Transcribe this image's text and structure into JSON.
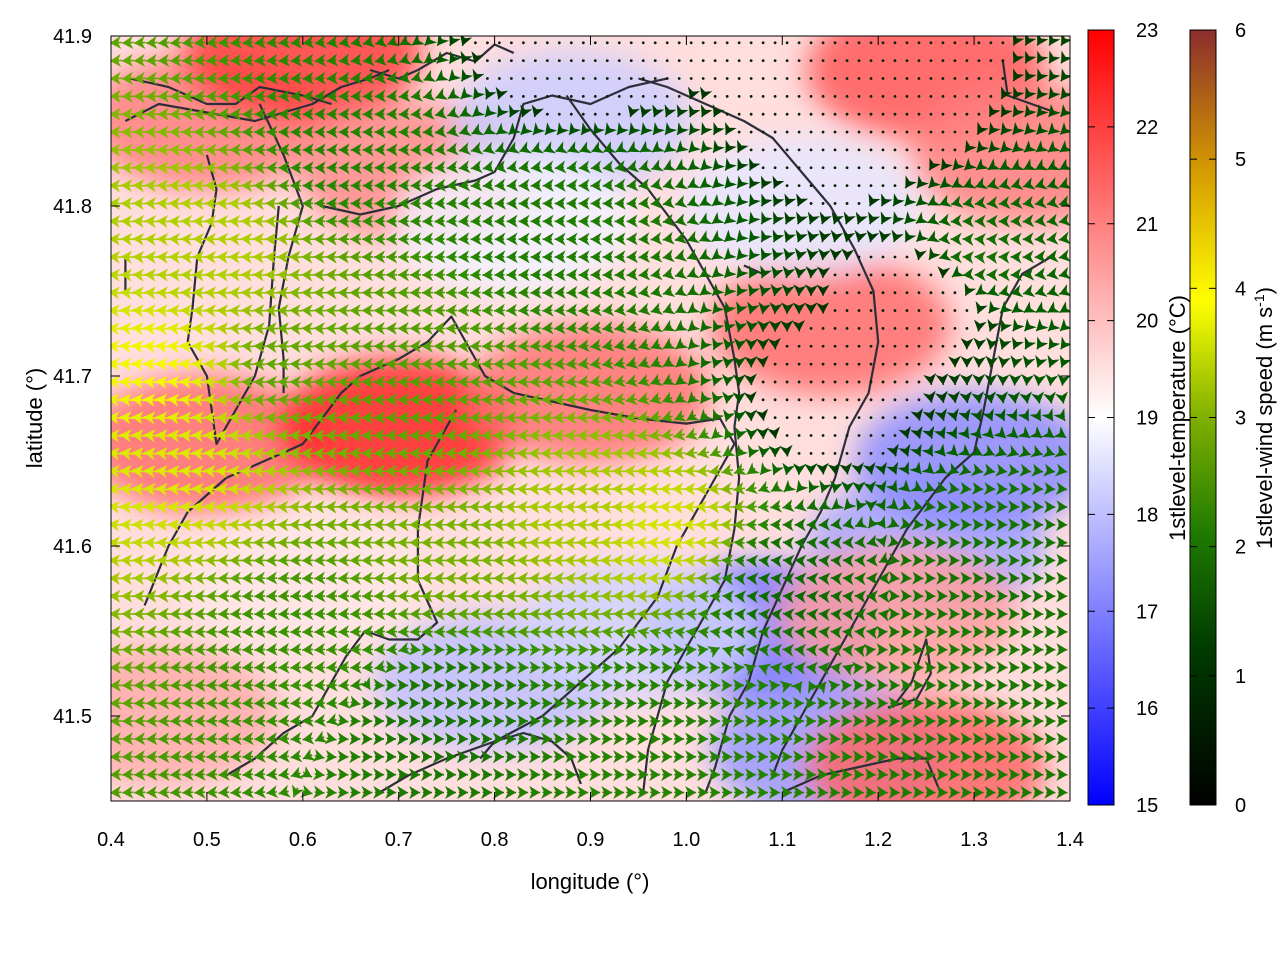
{
  "chart_data": {
    "type": "heatmap",
    "title": "",
    "xlabel": "longitude (°)",
    "ylabel": "latitude (°)",
    "xlim": [
      0.4,
      1.4
    ],
    "ylim": [
      41.45,
      41.9
    ],
    "x_ticks": [
      "0.4",
      "0.5",
      "0.6",
      "0.7",
      "0.8",
      "0.9",
      "1.0",
      "1.1",
      "1.2",
      "1.3",
      "1.4"
    ],
    "y_ticks": [
      "41.5",
      "41.6",
      "41.7",
      "41.8",
      "41.9"
    ],
    "x_tick_values": [
      0.4,
      0.5,
      0.6,
      0.7,
      0.8,
      0.9,
      1.0,
      1.1,
      1.2,
      1.3,
      1.4
    ],
    "y_tick_values": [
      41.5,
      41.6,
      41.7,
      41.8,
      41.9
    ],
    "temperature_colorbar": {
      "label": "1stlevel-temperature (°C)",
      "range": [
        15,
        23
      ],
      "ticks": [
        "15",
        "16",
        "17",
        "18",
        "19",
        "20",
        "21",
        "22",
        "23"
      ],
      "tick_values": [
        15,
        16,
        17,
        18,
        19,
        20,
        21,
        22,
        23
      ],
      "colors": [
        "#0000ff",
        "#ffffff",
        "#ff0000"
      ]
    },
    "wind_colorbar": {
      "label_main": "1stlevel-wind speed (m s",
      "label_sup": "-1",
      "label_end": ")",
      "range": [
        0,
        6
      ],
      "ticks": [
        "0",
        "1",
        "2",
        "3",
        "4",
        "5",
        "6"
      ],
      "tick_values": [
        0,
        1,
        2,
        3,
        4,
        5,
        6
      ],
      "colors": [
        "#000000",
        "#005a00",
        "#2d8c00",
        "#aacc00",
        "#ffff00",
        "#e0a000",
        "#8b2d2d"
      ]
    },
    "temperature_regions": [
      {
        "lon": 0.5,
        "lat": 41.85,
        "temp": 21.0
      },
      {
        "lon": 0.6,
        "lat": 41.89,
        "temp": 22.0
      },
      {
        "lon": 0.72,
        "lat": 41.82,
        "temp": 20.8
      },
      {
        "lon": 0.5,
        "lat": 41.66,
        "temp": 21.3
      },
      {
        "lon": 0.7,
        "lat": 41.67,
        "temp": 22.4
      },
      {
        "lon": 0.9,
        "lat": 41.69,
        "temp": 21.2
      },
      {
        "lon": 1.15,
        "lat": 41.73,
        "temp": 21.3
      },
      {
        "lon": 1.25,
        "lat": 41.88,
        "temp": 21.6
      },
      {
        "lon": 1.36,
        "lat": 41.83,
        "temp": 21.0
      },
      {
        "lon": 0.88,
        "lat": 41.85,
        "temp": 18.2
      },
      {
        "lon": 0.82,
        "lat": 41.79,
        "temp": 18.8
      },
      {
        "lon": 1.12,
        "lat": 41.8,
        "temp": 18.6
      },
      {
        "lon": 1.25,
        "lat": 41.6,
        "temp": 17.6
      },
      {
        "lon": 1.3,
        "lat": 41.65,
        "temp": 17.2
      },
      {
        "lon": 1.08,
        "lat": 41.55,
        "temp": 16.8
      },
      {
        "lon": 1.15,
        "lat": 41.48,
        "temp": 17.4
      },
      {
        "lon": 0.8,
        "lat": 41.52,
        "temp": 18.0
      },
      {
        "lon": 0.95,
        "lat": 41.55,
        "temp": 18.3
      },
      {
        "lon": 1.22,
        "lat": 41.56,
        "temp": 20.5
      },
      {
        "lon": 1.25,
        "lat": 41.47,
        "temp": 21.4
      },
      {
        "lon": 0.45,
        "lat": 41.5,
        "temp": 20.3
      },
      {
        "lon": 0.6,
        "lat": 41.58,
        "temp": 19.4
      }
    ],
    "wind_regions": [
      {
        "lon": 0.45,
        "lat": 41.7,
        "speed": 3.9,
        "u": -1,
        "v": 0.1
      },
      {
        "lon": 0.47,
        "lat": 41.65,
        "speed": 3.6,
        "u": -1,
        "v": 0.1
      },
      {
        "lon": 0.5,
        "lat": 41.78,
        "speed": 3.1,
        "u": -1,
        "v": 0.05
      },
      {
        "lon": 0.58,
        "lat": 41.7,
        "speed": 2.4,
        "u": -1,
        "v": 0.05
      },
      {
        "lon": 0.65,
        "lat": 41.83,
        "speed": 1.8,
        "u": -1,
        "v": 0.0
      },
      {
        "lon": 0.7,
        "lat": 41.7,
        "speed": 2.3,
        "u": -1,
        "v": 0.0
      },
      {
        "lon": 0.98,
        "lat": 41.61,
        "speed": 3.5,
        "u": -1,
        "v": 0.05
      },
      {
        "lon": 0.88,
        "lat": 41.62,
        "speed": 3.0,
        "u": -1,
        "v": 0.05
      },
      {
        "lon": 0.75,
        "lat": 41.6,
        "speed": 2.6,
        "u": -1,
        "v": 0.0
      },
      {
        "lon": 0.88,
        "lat": 41.79,
        "speed": 1.7,
        "u": -1,
        "v": 0.0
      },
      {
        "lon": 0.6,
        "lat": 41.55,
        "speed": 2.1,
        "u": -1,
        "v": -0.05
      },
      {
        "lon": 0.75,
        "lat": 41.5,
        "speed": 1.5,
        "u": 1,
        "v": 0.0
      },
      {
        "lon": 0.98,
        "lat": 41.5,
        "speed": 1.8,
        "u": 1,
        "v": 0.0
      },
      {
        "lon": 1.15,
        "lat": 41.68,
        "speed": 0.3,
        "u": 0.3,
        "v": -1
      },
      {
        "lon": 1.25,
        "lat": 41.75,
        "speed": 0.25,
        "u": 0.3,
        "v": -1
      },
      {
        "lon": 1.18,
        "lat": 41.85,
        "speed": 0.2,
        "u": -0.3,
        "v": -1
      },
      {
        "lon": 1.32,
        "lat": 41.6,
        "speed": 1.5,
        "u": 1,
        "v": 0.0
      },
      {
        "lon": 1.32,
        "lat": 41.52,
        "speed": 1.6,
        "u": 1,
        "v": 0.0
      },
      {
        "lon": 1.1,
        "lat": 41.58,
        "speed": 1.3,
        "u": -1,
        "v": 0.1
      },
      {
        "lon": 1.3,
        "lat": 41.77,
        "speed": 1.5,
        "u": -1,
        "v": 0.1
      },
      {
        "lon": 0.88,
        "lat": 41.89,
        "speed": 0.2,
        "u": 0,
        "v": -1
      }
    ],
    "coastlines": [
      [
        [
          0.435,
          41.565
        ],
        [
          0.46,
          41.6
        ],
        [
          0.48,
          41.62
        ],
        [
          0.52,
          41.64
        ],
        [
          0.56,
          41.65
        ],
        [
          0.6,
          41.66
        ],
        [
          0.62,
          41.675
        ],
        [
          0.64,
          41.69
        ],
        [
          0.66,
          41.7
        ],
        [
          0.7,
          41.71
        ],
        [
          0.73,
          41.72
        ],
        [
          0.755,
          41.735
        ],
        [
          0.77,
          41.72
        ],
        [
          0.79,
          41.7
        ],
        [
          0.82,
          41.69
        ],
        [
          0.86,
          41.685
        ],
        [
          0.9,
          41.68
        ],
        [
          0.95,
          41.675
        ],
        [
          1.0,
          41.672
        ],
        [
          1.035,
          41.675
        ],
        [
          1.05,
          41.66
        ],
        [
          1.03,
          41.64
        ],
        [
          1.01,
          41.62
        ],
        [
          0.99,
          41.6
        ],
        [
          0.97,
          41.57
        ],
        [
          0.93,
          41.54
        ],
        [
          0.89,
          41.52
        ],
        [
          0.85,
          41.5
        ],
        [
          0.8,
          41.485
        ],
        [
          0.75,
          41.475
        ],
        [
          0.71,
          41.465
        ],
        [
          0.68,
          41.455
        ]
      ],
      [
        [
          0.415,
          41.85
        ],
        [
          0.45,
          41.86
        ],
        [
          0.5,
          41.855
        ],
        [
          0.55,
          41.85
        ],
        [
          0.58,
          41.855
        ],
        [
          0.61,
          41.86
        ],
        [
          0.64,
          41.87
        ],
        [
          0.67,
          41.875
        ],
        [
          0.69,
          41.88
        ]
      ],
      [
        [
          0.42,
          41.875
        ],
        [
          0.46,
          41.87
        ],
        [
          0.5,
          41.86
        ],
        [
          0.53,
          41.86
        ],
        [
          0.555,
          41.87
        ],
        [
          0.6,
          41.865
        ],
        [
          0.63,
          41.86
        ]
      ],
      [
        [
          0.555,
          41.86
        ],
        [
          0.58,
          41.83
        ],
        [
          0.6,
          41.8
        ],
        [
          0.585,
          41.77
        ],
        [
          0.575,
          41.74
        ],
        [
          0.58,
          41.71
        ],
        [
          0.58,
          41.69
        ]
      ],
      [
        [
          0.5,
          41.83
        ],
        [
          0.51,
          41.81
        ],
        [
          0.505,
          41.79
        ],
        [
          0.49,
          41.77
        ],
        [
          0.485,
          41.74
        ],
        [
          0.48,
          41.72
        ],
        [
          0.5,
          41.7
        ],
        [
          0.51,
          41.66
        ],
        [
          0.53,
          41.68
        ],
        [
          0.55,
          41.7
        ],
        [
          0.565,
          41.73
        ],
        [
          0.57,
          41.77
        ],
        [
          0.575,
          41.8
        ]
      ],
      [
        [
          0.62,
          41.8
        ],
        [
          0.66,
          41.795
        ],
        [
          0.7,
          41.8
        ],
        [
          0.74,
          41.81
        ],
        [
          0.78,
          41.815
        ],
        [
          0.8,
          41.82
        ],
        [
          0.82,
          41.84
        ],
        [
          0.83,
          41.86
        ],
        [
          0.86,
          41.865
        ],
        [
          0.9,
          41.86
        ],
        [
          0.94,
          41.87
        ],
        [
          0.98,
          41.875
        ]
      ],
      [
        [
          0.875,
          41.865
        ],
        [
          0.9,
          41.845
        ],
        [
          0.93,
          41.825
        ],
        [
          0.96,
          41.81
        ],
        [
          0.98,
          41.795
        ],
        [
          1.0,
          41.78
        ],
        [
          1.02,
          41.76
        ],
        [
          1.04,
          41.74
        ],
        [
          1.05,
          41.71
        ],
        [
          1.055,
          41.69
        ],
        [
          1.05,
          41.67
        ]
      ],
      [
        [
          0.95,
          41.875
        ],
        [
          0.98,
          41.87
        ],
        [
          1.02,
          41.86
        ],
        [
          1.06,
          41.85
        ],
        [
          1.09,
          41.84
        ],
        [
          1.12,
          41.82
        ],
        [
          1.15,
          41.8
        ],
        [
          1.175,
          41.775
        ],
        [
          1.195,
          41.75
        ],
        [
          1.2,
          41.72
        ],
        [
          1.19,
          41.69
        ],
        [
          1.17,
          41.67
        ],
        [
          1.155,
          41.64
        ],
        [
          1.14,
          41.62
        ],
        [
          1.12,
          41.6
        ],
        [
          1.1,
          41.575
        ],
        [
          1.08,
          41.55
        ],
        [
          1.065,
          41.52
        ],
        [
          1.045,
          41.5
        ],
        [
          1.03,
          41.47
        ],
        [
          1.02,
          41.455
        ]
      ],
      [
        [
          1.05,
          41.67
        ],
        [
          1.055,
          41.64
        ],
        [
          1.05,
          41.61
        ],
        [
          1.04,
          41.58
        ],
        [
          1.02,
          41.56
        ],
        [
          1.0,
          41.54
        ],
        [
          0.98,
          41.52
        ],
        [
          0.97,
          41.5
        ],
        [
          0.96,
          41.48
        ],
        [
          0.955,
          41.455
        ]
      ],
      [
        [
          1.38,
          41.77
        ],
        [
          1.35,
          41.76
        ],
        [
          1.33,
          41.74
        ],
        [
          1.32,
          41.71
        ],
        [
          1.31,
          41.68
        ],
        [
          1.3,
          41.655
        ],
        [
          1.27,
          41.64
        ],
        [
          1.23,
          41.61
        ],
        [
          1.2,
          41.58
        ],
        [
          1.17,
          41.55
        ],
        [
          1.14,
          41.52
        ],
        [
          1.12,
          41.5
        ],
        [
          1.1,
          41.48
        ],
        [
          1.09,
          41.465
        ]
      ],
      [
        [
          1.1,
          41.455
        ],
        [
          1.14,
          41.465
        ],
        [
          1.18,
          41.47
        ],
        [
          1.22,
          41.475
        ],
        [
          1.25,
          41.475
        ],
        [
          1.265,
          41.455
        ]
      ],
      [
        [
          1.21,
          41.505
        ],
        [
          1.24,
          41.51
        ],
        [
          1.255,
          41.525
        ],
        [
          1.25,
          41.545
        ],
        [
          1.235,
          41.52
        ],
        [
          1.215,
          41.505
        ]
      ],
      [
        [
          0.785,
          41.475
        ],
        [
          0.8,
          41.485
        ],
        [
          0.83,
          41.49
        ],
        [
          0.86,
          41.485
        ],
        [
          0.88,
          41.475
        ],
        [
          0.89,
          41.46
        ]
      ],
      [
        [
          0.52,
          41.465
        ],
        [
          0.55,
          41.475
        ],
        [
          0.58,
          41.49
        ],
        [
          0.61,
          41.5
        ],
        [
          0.63,
          41.52
        ],
        [
          0.645,
          41.535
        ],
        [
          0.665,
          41.55
        ],
        [
          0.69,
          41.545
        ],
        [
          0.72,
          41.545
        ],
        [
          0.74,
          41.555
        ],
        [
          0.72,
          41.58
        ],
        [
          0.72,
          41.61
        ],
        [
          0.73,
          41.65
        ],
        [
          0.76,
          41.68
        ]
      ],
      [
        [
          0.67,
          41.88
        ],
        [
          0.7,
          41.875
        ],
        [
          0.72,
          41.88
        ],
        [
          0.75,
          41.89
        ],
        [
          0.78,
          41.885
        ],
        [
          0.8,
          41.895
        ],
        [
          0.82,
          41.89
        ]
      ],
      [
        [
          1.33,
          41.885
        ],
        [
          1.335,
          41.865
        ],
        [
          1.36,
          41.86
        ],
        [
          1.385,
          41.855
        ]
      ],
      [
        [
          0.415,
          41.77
        ],
        [
          0.415,
          41.75
        ]
      ],
      [
        [
          1.06,
          41.765
        ],
        [
          1.08,
          41.76
        ]
      ]
    ]
  }
}
